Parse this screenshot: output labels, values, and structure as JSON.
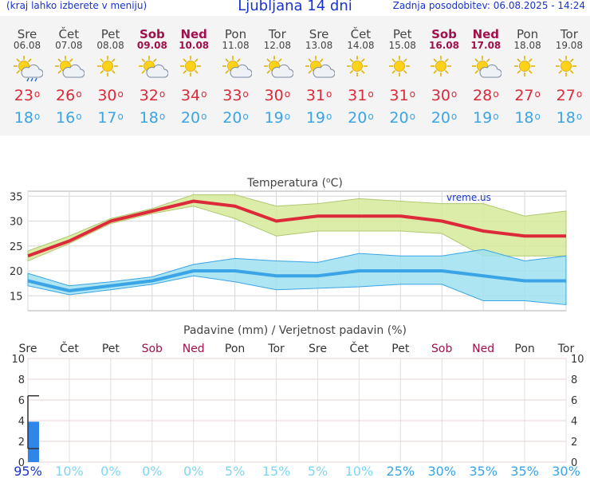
{
  "header": {
    "hint": "(kraj lahko izberete v meniju)",
    "title": "Ljubljana 14 dni",
    "updated": "Zadnja posodobitev: 06.08.2025 - 14:24"
  },
  "days": [
    {
      "name": "Sre",
      "date": "06.08",
      "weekend": false,
      "icon": "sun-cloud-rain-icon",
      "max": "23",
      "min": "18"
    },
    {
      "name": "Čet",
      "date": "07.08",
      "weekend": false,
      "icon": "sun-cloud-icon",
      "max": "26",
      "min": "16"
    },
    {
      "name": "Pet",
      "date": "08.08",
      "weekend": false,
      "icon": "sun-icon",
      "max": "30",
      "min": "17"
    },
    {
      "name": "Sob",
      "date": "09.08",
      "weekend": true,
      "icon": "sun-cloud-icon",
      "max": "32",
      "min": "18"
    },
    {
      "name": "Ned",
      "date": "10.08",
      "weekend": true,
      "icon": "sun-icon",
      "max": "34",
      "min": "20"
    },
    {
      "name": "Pon",
      "date": "11.08",
      "weekend": false,
      "icon": "sun-cloud-icon",
      "max": "33",
      "min": "20"
    },
    {
      "name": "Tor",
      "date": "12.08",
      "weekend": false,
      "icon": "sun-cloud-icon",
      "max": "30",
      "min": "19"
    },
    {
      "name": "Sre",
      "date": "13.08",
      "weekend": false,
      "icon": "sun-cloud-icon",
      "max": "31",
      "min": "19"
    },
    {
      "name": "Čet",
      "date": "14.08",
      "weekend": false,
      "icon": "sun-icon",
      "max": "31",
      "min": "20"
    },
    {
      "name": "Pet",
      "date": "15.08",
      "weekend": false,
      "icon": "sun-icon",
      "max": "31",
      "min": "20"
    },
    {
      "name": "Sob",
      "date": "16.08",
      "weekend": true,
      "icon": "sun-icon",
      "max": "30",
      "min": "20"
    },
    {
      "name": "Ned",
      "date": "17.08",
      "weekend": true,
      "icon": "sun-cloud-icon",
      "max": "28",
      "min": "19"
    },
    {
      "name": "Pon",
      "date": "18.08",
      "weekend": false,
      "icon": "sun-icon",
      "max": "27",
      "min": "18"
    },
    {
      "name": "Tor",
      "date": "19.08",
      "weekend": false,
      "icon": "sun-icon",
      "max": "27",
      "min": "18"
    }
  ],
  "colors": {
    "max": "#dd2a3a",
    "min": "#3aa4e6",
    "weekend": "#a0104c",
    "max_band": "#d6ea9a",
    "min_band": "#9fe0f0",
    "precip_bar": "#2f85e8",
    "prob": "#7fd6f2"
  },
  "chart_data": [
    {
      "type": "line",
      "title": "Temperatura (°C)",
      "title_text": "Temperatura (",
      "title_unit": "C)",
      "watermark": "vreme.us",
      "categories": [
        "Sre",
        "Čet",
        "Pet",
        "Sob",
        "Ned",
        "Pon",
        "Tor",
        "Sre",
        "Čet",
        "Pet",
        "Sob",
        "Ned",
        "Pon",
        "Tor"
      ],
      "ylim": [
        12,
        36
      ],
      "yticks": [
        15,
        20,
        25,
        30,
        35
      ],
      "series": [
        {
          "values": [
            23,
            26,
            30,
            32,
            34,
            33,
            30,
            31,
            31,
            31,
            30,
            28,
            27,
            27
          ],
          "band_low": [
            22,
            25.5,
            29.5,
            31.5,
            33,
            30.5,
            27,
            28,
            28,
            28,
            27.5,
            23,
            23,
            23
          ],
          "band_high": [
            24,
            27,
            30.5,
            32.5,
            35.3,
            35.3,
            33,
            33.5,
            34.5,
            34,
            33.5,
            33.5,
            31,
            32
          ]
        },
        {
          "values": [
            18,
            16,
            17,
            18,
            20,
            20,
            19,
            19,
            20,
            20,
            20,
            19,
            18,
            18
          ],
          "band_low": [
            17,
            15.2,
            16.2,
            17.3,
            19,
            17.8,
            16.2,
            16.5,
            16.8,
            17.3,
            17.3,
            14,
            14,
            13.2
          ],
          "band_high": [
            19.5,
            17,
            17.8,
            18.8,
            21.3,
            22.5,
            22,
            21.7,
            23.5,
            23,
            23,
            24.3,
            22,
            23
          ]
        }
      ]
    },
    {
      "type": "bar",
      "title": "Padavine (mm) / Verjetnost padavin (%)",
      "categories": [
        "Sre",
        "Čet",
        "Pet",
        "Sob",
        "Ned",
        "Pon",
        "Tor",
        "Sre",
        "Čet",
        "Pet",
        "Sob",
        "Ned",
        "Pon",
        "Tor"
      ],
      "ylim": [
        0,
        10
      ],
      "yticks": [
        0,
        2,
        4,
        6,
        8,
        10
      ],
      "values": [
        3.9,
        0,
        0,
        0,
        0,
        0,
        0,
        0,
        0,
        0,
        0,
        0,
        0,
        0
      ],
      "error_high": 6.4,
      "error_low": 1.3,
      "probability": [
        "95%",
        "10%",
        "0%",
        "0%",
        "0%",
        "5%",
        "15%",
        "5%",
        "10%",
        "25%",
        "30%",
        "35%",
        "35%",
        "30%"
      ]
    }
  ]
}
